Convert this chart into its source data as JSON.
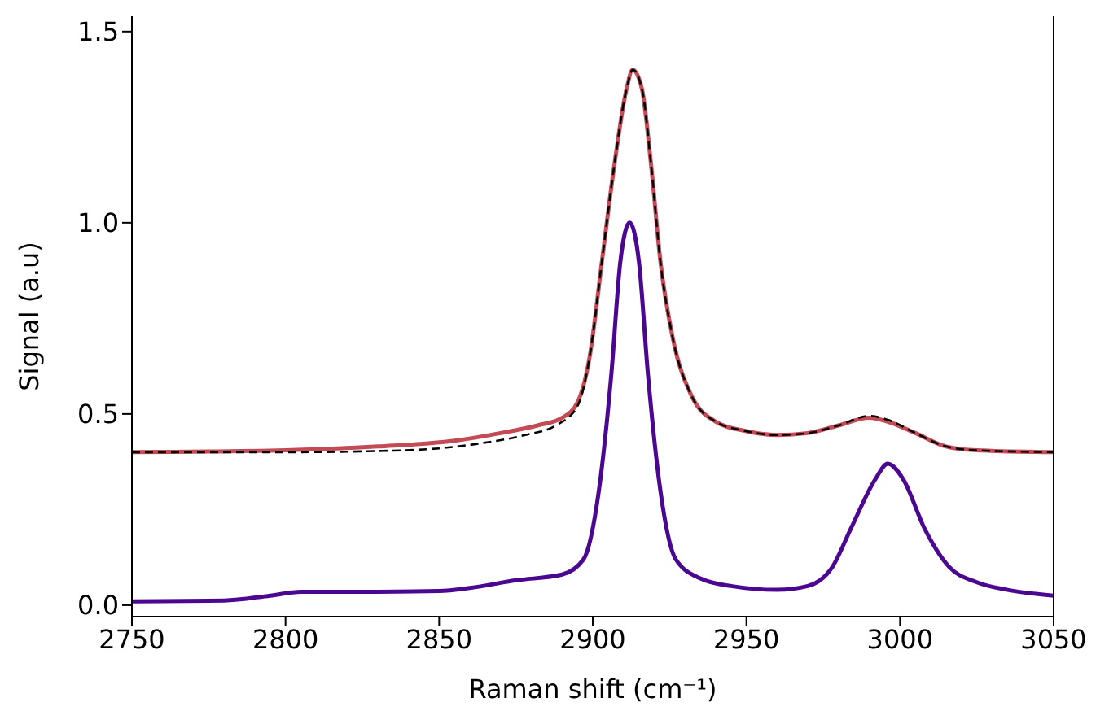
{
  "chart_data": {
    "type": "line",
    "xlabel": "Raman shift (cm⁻¹)",
    "ylabel": "Signal (a.u)",
    "xlim": [
      2750,
      3050
    ],
    "xticks": [
      2750,
      2800,
      2850,
      2900,
      2950,
      3000,
      3050
    ],
    "ylim": [
      -0.03,
      1.54
    ],
    "yticks": [
      {
        "value": 0,
        "label": "0.0"
      },
      0.5,
      {
        "value": 1,
        "label": "1.0"
      },
      1.5
    ],
    "grid": false,
    "marker": "none",
    "series": [
      {
        "color": "#4b0791",
        "line_style": "solid",
        "x": [
          2750,
          2780,
          2795,
          2805,
          2830,
          2850,
          2860,
          2875,
          2890,
          2897,
          2902,
          2906,
          2909,
          2912,
          2915,
          2918,
          2922,
          2927,
          2935,
          2945,
          2960,
          2970,
          2978,
          2984,
          2992,
          2996,
          3001,
          3008,
          3016,
          3025,
          3035,
          3050
        ],
        "values": [
          0.01,
          0.012,
          0.025,
          0.035,
          0.035,
          0.037,
          0.045,
          0.065,
          0.08,
          0.12,
          0.3,
          0.6,
          0.9,
          1.0,
          0.9,
          0.6,
          0.3,
          0.12,
          0.07,
          0.05,
          0.04,
          0.05,
          0.1,
          0.2,
          0.33,
          0.37,
          0.33,
          0.2,
          0.1,
          0.06,
          0.04,
          0.025
        ]
      },
      {
        "color": "#c44a55",
        "line_style": "solid",
        "x": [
          2750,
          2800,
          2830,
          2855,
          2870,
          2882,
          2890,
          2895,
          2899,
          2903,
          2907,
          2911,
          2913,
          2916,
          2919,
          2922,
          2926,
          2932,
          2940,
          2950,
          2960,
          2970,
          2980,
          2990,
          2996,
          3005,
          3015,
          3025,
          3050
        ],
        "values": [
          0.4,
          0.405,
          0.415,
          0.43,
          0.45,
          0.47,
          0.49,
          0.53,
          0.65,
          0.9,
          1.15,
          1.35,
          1.4,
          1.35,
          1.15,
          0.9,
          0.7,
          0.55,
          0.48,
          0.455,
          0.445,
          0.45,
          0.47,
          0.49,
          0.48,
          0.45,
          0.415,
          0.405,
          0.4
        ]
      },
      {
        "color": "#000000",
        "line_style": "dashed",
        "x": [
          2750,
          2800,
          2830,
          2850,
          2865,
          2878,
          2888,
          2895,
          2899,
          2903,
          2907,
          2911,
          2913,
          2916,
          2919,
          2922,
          2926,
          2932,
          2940,
          2950,
          2960,
          2970,
          2980,
          2990,
          2996,
          3005,
          3015,
          3025,
          3050
        ],
        "values": [
          0.4,
          0.4,
          0.403,
          0.41,
          0.425,
          0.445,
          0.47,
          0.52,
          0.65,
          0.9,
          1.15,
          1.35,
          1.4,
          1.35,
          1.15,
          0.9,
          0.7,
          0.55,
          0.48,
          0.455,
          0.445,
          0.45,
          0.47,
          0.495,
          0.485,
          0.45,
          0.415,
          0.405,
          0.4
        ]
      }
    ]
  }
}
